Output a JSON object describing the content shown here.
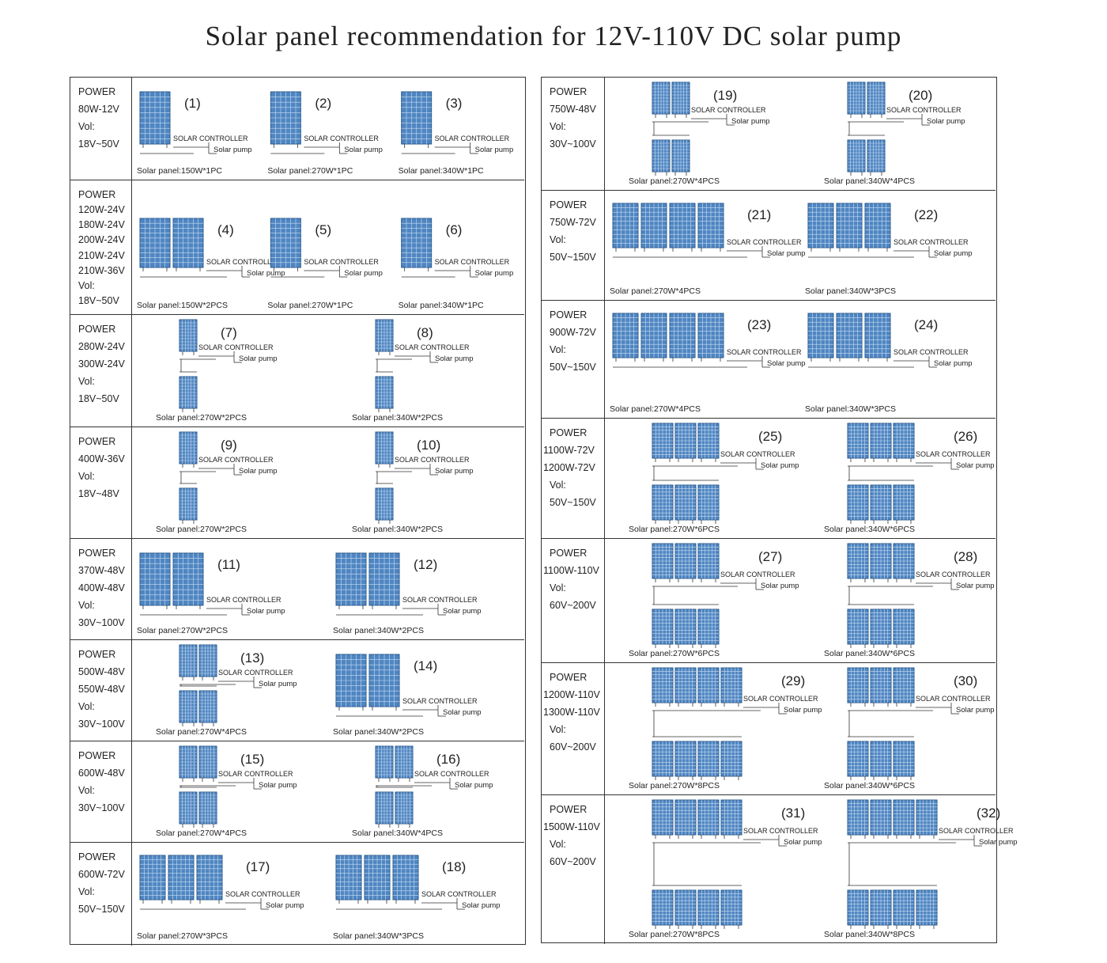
{
  "title": "Solar panel recommendation for 12V-110V DC solar pump",
  "colors": {
    "panel": "#4f86c2",
    "panel_grid": "#c9dcf0",
    "panel_frame": "#2b5a8e",
    "line": "#333333"
  },
  "labels": {
    "controller": "SOLAR CONTROLLER",
    "pump": "Solar pump"
  },
  "left_rows": [
    {
      "lines": [
        "POWER",
        "80W-12V",
        "Vol:",
        "18V~50V"
      ],
      "configs": [
        {
          "num": "(1)",
          "caption": "Solar panel:150W*1PC",
          "layout": "1"
        },
        {
          "num": "(2)",
          "caption": "Solar panel:270W*1PC",
          "layout": "1"
        },
        {
          "num": "(3)",
          "caption": "Solar panel:340W*1PC",
          "layout": "1"
        }
      ]
    },
    {
      "lines": [
        "POWER",
        "120W-24V",
        "180W-24V",
        "200W-24V",
        "210W-24V",
        "210W-36V",
        "Vol:",
        "18V~50V"
      ],
      "configs": [
        {
          "num": "(4)",
          "caption": "Solar panel:150W*2PCS",
          "layout": "2"
        },
        {
          "num": "(5)",
          "caption": "Solar panel:270W*1PC",
          "layout": "1"
        },
        {
          "num": "(6)",
          "caption": "Solar panel:340W*1PC",
          "layout": "1"
        }
      ]
    },
    {
      "lines": [
        "POWER",
        "280W-24V",
        "300W-24V",
        "Vol:",
        "18V~50V"
      ],
      "configs": [
        {
          "num": "(7)",
          "caption": "Solar panel:270W*2PCS",
          "layout": "s1"
        },
        {
          "num": "(8)",
          "caption": "Solar panel:340W*2PCS",
          "layout": "s1"
        }
      ]
    },
    {
      "lines": [
        "POWER",
        "400W-36V",
        "Vol:",
        "18V~48V"
      ],
      "configs": [
        {
          "num": "(9)",
          "caption": "Solar panel:270W*2PCS",
          "layout": "s1"
        },
        {
          "num": "(10)",
          "caption": "Solar panel:340W*2PCS",
          "layout": "s1"
        }
      ]
    },
    {
      "lines": [
        "POWER",
        "370W-48V",
        "400W-48V",
        "Vol:",
        "30V~100V"
      ],
      "configs": [
        {
          "num": "(11)",
          "caption": "Solar panel:270W*2PCS",
          "layout": "2"
        },
        {
          "num": "(12)",
          "caption": "Solar panel:340W*2PCS",
          "layout": "2"
        }
      ]
    },
    {
      "lines": [
        "POWER",
        "500W-48V",
        "550W-48V",
        "Vol:",
        "30V~100V"
      ],
      "configs": [
        {
          "num": "(13)",
          "caption": "Solar panel:270W*4PCS",
          "layout": "s2"
        },
        {
          "num": "(14)",
          "caption": "Solar panel:340W*2PCS",
          "layout": "2"
        }
      ]
    },
    {
      "lines": [
        "POWER",
        "600W-48V",
        "Vol:",
        "30V~100V"
      ],
      "configs": [
        {
          "num": "(15)",
          "caption": "Solar panel:270W*4PCS",
          "layout": "s2"
        },
        {
          "num": "(16)",
          "caption": "Solar panel:340W*4PCS",
          "layout": "s2"
        }
      ]
    },
    {
      "lines": [
        "POWER",
        "600W-72V",
        "Vol:",
        "50V~150V"
      ],
      "configs": [
        {
          "num": "(17)",
          "caption": "Solar panel:270W*3PCS",
          "layout": "3"
        },
        {
          "num": "(18)",
          "caption": "Solar panel:340W*3PCS",
          "layout": "3"
        }
      ]
    }
  ],
  "right_rows": [
    {
      "lines": [
        "POWER",
        "750W-48V",
        "Vol:",
        "30V~100V"
      ],
      "configs": [
        {
          "num": "(19)",
          "caption": "Solar panel:270W*4PCS",
          "layout": "s2"
        },
        {
          "num": "(20)",
          "caption": "Solar panel:340W*4PCS",
          "layout": "s2"
        }
      ]
    },
    {
      "lines": [
        "POWER",
        "750W-72V",
        "Vol:",
        "50V~150V"
      ],
      "configs": [
        {
          "num": "(21)",
          "caption": "Solar panel:270W*4PCS",
          "layout": "4"
        },
        {
          "num": "(22)",
          "caption": "Solar panel:340W*3PCS",
          "layout": "3"
        }
      ]
    },
    {
      "lines": [
        "POWER",
        "900W-72V",
        "Vol:",
        "50V~150V"
      ],
      "configs": [
        {
          "num": "(23)",
          "caption": "Solar panel:270W*4PCS",
          "layout": "4"
        },
        {
          "num": "(24)",
          "caption": "Solar panel:340W*3PCS",
          "layout": "3"
        }
      ]
    },
    {
      "lines": [
        "POWER",
        "1100W-72V",
        "1200W-72V",
        "Vol:",
        "50V~150V"
      ],
      "configs": [
        {
          "num": "(25)",
          "caption": "Solar panel:270W*6PCS",
          "layout": "s3"
        },
        {
          "num": "(26)",
          "caption": "Solar panel:340W*6PCS",
          "layout": "s3"
        }
      ]
    },
    {
      "lines": [
        "POWER",
        "1100W-110V",
        "Vol:",
        "60V~200V"
      ],
      "configs": [
        {
          "num": "(27)",
          "caption": "Solar panel:270W*6PCS",
          "layout": "s3"
        },
        {
          "num": "(28)",
          "caption": "Solar panel:340W*6PCS",
          "layout": "s3"
        }
      ]
    },
    {
      "lines": [
        "POWER",
        "1200W-110V",
        "1300W-110V",
        "Vol:",
        "60V~200V"
      ],
      "configs": [
        {
          "num": "(29)",
          "caption": "Solar panel:270W*8PCS",
          "layout": "s4"
        },
        {
          "num": "(30)",
          "caption": "Solar panel:340W*6PCS",
          "layout": "s3"
        }
      ]
    },
    {
      "lines": [
        "POWER",
        "1500W-110V",
        "Vol:",
        "60V~200V"
      ],
      "configs": [
        {
          "num": "(31)",
          "caption": "Solar panel:270W*8PCS",
          "layout": "s4"
        },
        {
          "num": "(32)",
          "caption": "Solar panel:340W*8PCS",
          "layout": "s4"
        }
      ]
    }
  ]
}
